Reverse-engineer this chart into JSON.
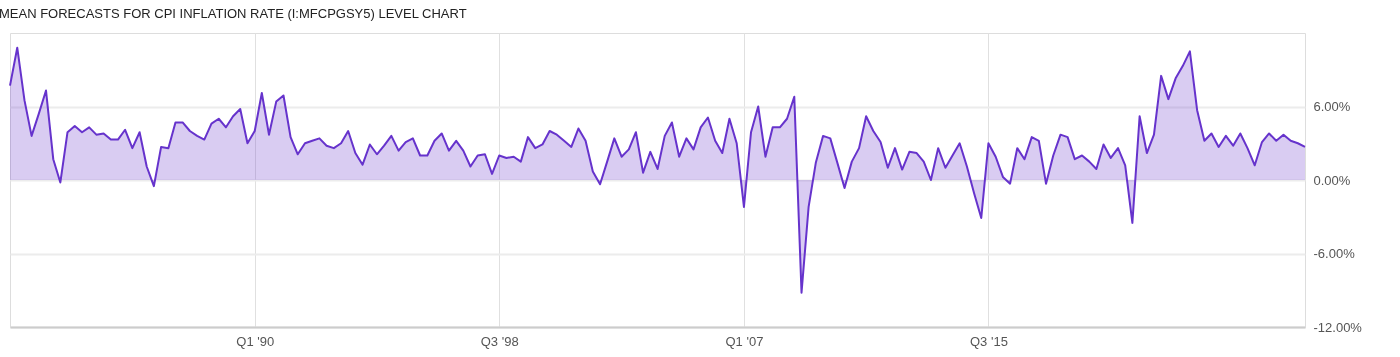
{
  "chart_data": {
    "type": "area",
    "title": "MEAN FORECASTS FOR CPI INFLATION RATE (I:MFCPGSY5) LEVEL CHART",
    "x": [
      "1981-07-01",
      "1981-10-01",
      "1982-01-01",
      "1982-04-01",
      "1982-07-01",
      "1982-10-01",
      "1983-01-01",
      "1983-04-01",
      "1983-07-01",
      "1983-10-01",
      "1984-01-01",
      "1984-04-01",
      "1984-07-01",
      "1984-10-01",
      "1985-01-01",
      "1985-04-01",
      "1985-07-01",
      "1985-10-01",
      "1986-01-01",
      "1986-04-01",
      "1986-07-01",
      "1986-10-01",
      "1987-01-01",
      "1987-04-01",
      "1987-07-01",
      "1987-10-01",
      "1988-01-01",
      "1988-04-01",
      "1988-07-01",
      "1988-10-01",
      "1989-01-01",
      "1989-04-01",
      "1989-07-01",
      "1989-10-01",
      "1990-01-01",
      "1990-04-01",
      "1990-07-01",
      "1990-10-01",
      "1991-01-01",
      "1991-04-01",
      "1991-07-01",
      "1991-10-01",
      "1992-01-01",
      "1992-04-01",
      "1992-07-01",
      "1992-10-01",
      "1993-01-01",
      "1993-04-01",
      "1993-07-01",
      "1993-10-01",
      "1994-01-01",
      "1994-04-01",
      "1994-07-01",
      "1994-10-01",
      "1995-01-01",
      "1995-04-01",
      "1995-07-01",
      "1995-10-01",
      "1996-01-01",
      "1996-04-01",
      "1996-07-01",
      "1996-10-01",
      "1997-01-01",
      "1997-04-01",
      "1997-07-01",
      "1997-10-01",
      "1998-01-01",
      "1998-04-01",
      "1998-07-01",
      "1998-10-01",
      "1999-01-01",
      "1999-04-01",
      "1999-07-01",
      "1999-10-01",
      "2000-01-01",
      "2000-04-01",
      "2000-07-01",
      "2000-10-01",
      "2001-01-01",
      "2001-04-01",
      "2001-07-01",
      "2001-10-01",
      "2002-01-01",
      "2002-04-01",
      "2002-07-01",
      "2002-10-01",
      "2003-01-01",
      "2003-04-01",
      "2003-07-01",
      "2003-10-01",
      "2004-01-01",
      "2004-04-01",
      "2004-07-01",
      "2004-10-01",
      "2005-01-01",
      "2005-04-01",
      "2005-07-01",
      "2005-10-01",
      "2006-01-01",
      "2006-04-01",
      "2006-07-01",
      "2006-10-01",
      "2007-01-01",
      "2007-04-01",
      "2007-07-01",
      "2007-10-01",
      "2008-01-01",
      "2008-04-01",
      "2008-07-01",
      "2008-10-01",
      "2009-01-01",
      "2009-04-01",
      "2009-07-01",
      "2009-10-01",
      "2010-01-01",
      "2010-04-01",
      "2010-07-01",
      "2010-10-01",
      "2011-01-01",
      "2011-04-01",
      "2011-07-01",
      "2011-10-01",
      "2012-01-01",
      "2012-04-01",
      "2012-07-01",
      "2012-10-01",
      "2013-01-01",
      "2013-04-01",
      "2013-07-01",
      "2013-10-01",
      "2014-01-01",
      "2014-04-01",
      "2014-07-01",
      "2014-10-01",
      "2015-01-01",
      "2015-04-01",
      "2015-07-01",
      "2015-10-01",
      "2016-01-01",
      "2016-04-01",
      "2016-07-01",
      "2016-10-01",
      "2017-01-01",
      "2017-04-01",
      "2017-07-01",
      "2017-10-01",
      "2018-01-01",
      "2018-04-01",
      "2018-07-01",
      "2018-10-01",
      "2019-01-01",
      "2019-04-01",
      "2019-07-01",
      "2019-10-01",
      "2020-01-01",
      "2020-04-01",
      "2020-07-01",
      "2020-10-01",
      "2021-01-01",
      "2021-04-01",
      "2021-07-01",
      "2021-10-01",
      "2022-01-01",
      "2022-04-01",
      "2022-07-01",
      "2022-10-01",
      "2023-01-01",
      "2023-04-01",
      "2023-07-01",
      "2023-10-01",
      "2024-01-01",
      "2024-04-01",
      "2024-07-01",
      "2024-10-01",
      "2025-01-01",
      "2025-04-01",
      "2025-07-01",
      "2025-10-01",
      "2026-01-01",
      "2026-04-01",
      "2026-07-01"
    ],
    "series": [
      {
        "color": "#6633cc",
        "values": [
          7.7,
          10.8,
          6.5,
          3.6,
          5.4,
          7.3,
          1.7,
          -0.2,
          3.9,
          4.4,
          3.9,
          4.3,
          3.7,
          3.8,
          3.3,
          3.3,
          4.1,
          2.6,
          3.9,
          1.1,
          -0.5,
          2.7,
          2.6,
          4.7,
          4.7,
          4.0,
          3.6,
          3.3,
          4.6,
          5.0,
          4.3,
          5.2,
          5.8,
          3.0,
          4.0,
          7.1,
          3.7,
          6.4,
          6.9,
          3.5,
          2.1,
          3.0,
          3.2,
          3.4,
          2.8,
          2.6,
          3.0,
          4.0,
          2.2,
          1.25,
          2.9,
          2.1,
          2.8,
          3.6,
          2.4,
          3.1,
          3.4,
          2.0,
          2.0,
          3.2,
          3.8,
          2.4,
          3.2,
          2.4,
          1.1,
          2.0,
          2.1,
          0.5,
          2.0,
          1.8,
          1.9,
          1.5,
          3.5,
          2.6,
          2.9,
          4.0,
          3.7,
          3.2,
          2.7,
          4.2,
          3.2,
          0.7,
          -0.35,
          1.5,
          3.4,
          1.9,
          2.5,
          3.9,
          0.6,
          2.3,
          0.9,
          3.6,
          4.7,
          1.9,
          3.4,
          2.5,
          4.3,
          5.1,
          3.2,
          2.2,
          5.0,
          3.0,
          -2.2,
          3.9,
          6.0,
          1.9,
          4.3,
          4.3,
          5.0,
          6.8,
          -9.2,
          -2.2,
          1.4,
          3.6,
          3.4,
          1.4,
          -0.65,
          1.5,
          2.6,
          5.2,
          4.0,
          3.1,
          1.0,
          2.6,
          0.85,
          2.3,
          2.2,
          1.5,
          0.0,
          2.6,
          1.0,
          2.0,
          3.0,
          1.1,
          -1.1,
          -3.1,
          3.0,
          1.9,
          0.25,
          -0.3,
          2.6,
          1.7,
          3.5,
          3.2,
          -0.3,
          2.0,
          3.7,
          3.5,
          1.7,
          2.0,
          1.5,
          0.9,
          2.9,
          1.8,
          2.6,
          1.2,
          -3.5,
          5.2,
          2.2,
          3.7,
          8.5,
          6.6,
          8.3,
          9.3,
          10.5,
          5.7,
          3.2,
          3.8,
          2.7,
          3.6,
          2.8,
          3.8,
          2.6,
          1.2,
          3.1,
          3.8,
          3.2,
          3.7,
          3.2,
          3.0,
          2.7
        ]
      }
    ],
    "xlim": [
      "1981-07-01",
      "2026-07-01"
    ],
    "xticks": [
      {
        "value": "1990-01-01",
        "label": "Q1 '90"
      },
      {
        "value": "1998-07-01",
        "label": "Q3 '98"
      },
      {
        "value": "2007-01-01",
        "label": "Q1 '07"
      },
      {
        "value": "2015-07-01",
        "label": "Q3 '15"
      }
    ],
    "ylim": [
      -12,
      12
    ],
    "yticks": [
      {
        "value": 6,
        "label": "6.00%"
      },
      {
        "value": 0,
        "label": "0.00%"
      },
      {
        "value": -6,
        "label": "-6.00%"
      },
      {
        "value": -12,
        "label": "-12.00%"
      }
    ],
    "grid": true
  }
}
